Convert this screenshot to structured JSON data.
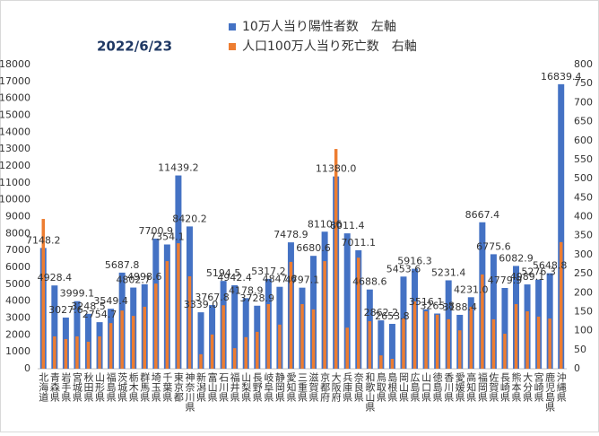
{
  "chart_data": {
    "type": "bar",
    "title": "2022/6/23",
    "categories": [
      "北海道",
      "青森県",
      "岩手県",
      "宮城県",
      "秋田県",
      "山形県",
      "福島県",
      "茨城県",
      "栃木県",
      "群馬県",
      "埼玉県",
      "千葉県",
      "東京都",
      "神奈川県",
      "新潟県",
      "富山県",
      "石川県",
      "福井県",
      "山梨県",
      "長野県",
      "岐阜県",
      "静岡県",
      "愛知県",
      "三重県",
      "滋賀県",
      "京都府",
      "大阪府",
      "兵庫県",
      "奈良県",
      "和歌山県",
      "鳥取県",
      "島根県",
      "岡山県",
      "広島県",
      "山口県",
      "徳島県",
      "香川県",
      "愛媛県",
      "高知県",
      "福岡県",
      "佐賀県",
      "長崎県",
      "熊本県",
      "大分県",
      "宮崎県",
      "鹿児島県",
      "沖縄県"
    ],
    "series": [
      {
        "name": "10万人当り陽性者数　左軸",
        "color": "#4472c4",
        "values": [
          7148.2,
          4928.4,
          3027.6,
          3999.1,
          3248.5,
          2754.7,
          3549.4,
          5687.8,
          4802.7,
          4998.6,
          7700.9,
          7354.1,
          11439.2,
          8420.2,
          3339.0,
          3767.8,
          5194.5,
          4942.4,
          4178.9,
          3728.9,
          5317.2,
          4847.6,
          7478.9,
          4797.1,
          6680.6,
          8110.6,
          11380.0,
          8011.4,
          7011.1,
          4688.6,
          2862.2,
          2653.8,
          5453.6,
          5916.3,
          3516.1,
          3265.8,
          5231.4,
          3188.4,
          4231.0,
          8667.4,
          6775.6,
          4779.9,
          6082.9,
          4989.1,
          5276.3,
          5648.8,
          16839.4
        ],
        "value_labels": [
          "7148.2",
          "4928.4",
          "3027.6",
          "3999.1",
          "3248.5",
          "2754.7",
          "3549.4",
          "5687.8",
          "4802.7",
          "4998.6",
          "7700.9",
          "7354.1",
          "11439.2",
          "8420.2",
          "3339.0",
          "3767.8",
          "5194.5",
          "4942.4",
          "4178.9",
          "3728.9",
          "5317.2",
          "4847.6",
          "7478.9",
          "4797.1",
          "6680.6",
          "8110.6",
          "11380.0",
          "8011.4",
          "7011.1",
          "4688.6",
          "2862.2",
          "2653.8",
          "5453.6",
          "5916.3",
          "3516.1",
          "3265.8",
          "5231.4",
          "3188.4",
          "4231.0",
          "8667.4",
          "6775.6",
          "4779.9",
          "6082.9",
          "4989.1",
          "5276.3",
          "5648.8",
          "16839.4"
        ]
      },
      {
        "name": "人口100万人当り死亡数　右軸",
        "color": "#ed7d31",
        "axis": "y2",
        "values": [
          394,
          85,
          78,
          85,
          71,
          85,
          120,
          153,
          139,
          163,
          224,
          283,
          330,
          243,
          38,
          90,
          167,
          54,
          83,
          97,
          170,
          116,
          281,
          170,
          156,
          283,
          578,
          108,
          292,
          125,
          35,
          26,
          132,
          177,
          151,
          142,
          130,
          101,
          163,
          248,
          130,
          92,
          170,
          151,
          137,
          132,
          333
        ]
      }
    ],
    "ylim": [
      0,
      18000
    ],
    "yticks": [
      0,
      1000,
      2000,
      3000,
      4000,
      5000,
      6000,
      7000,
      8000,
      9000,
      10000,
      11000,
      12000,
      13000,
      14000,
      15000,
      16000,
      17000,
      18000
    ],
    "y2lim": [
      0,
      800
    ],
    "y2ticks": [
      0,
      50,
      100,
      150,
      200,
      250,
      300,
      350,
      400,
      450,
      500,
      550,
      600,
      650,
      700,
      750,
      800
    ],
    "grid": false
  }
}
